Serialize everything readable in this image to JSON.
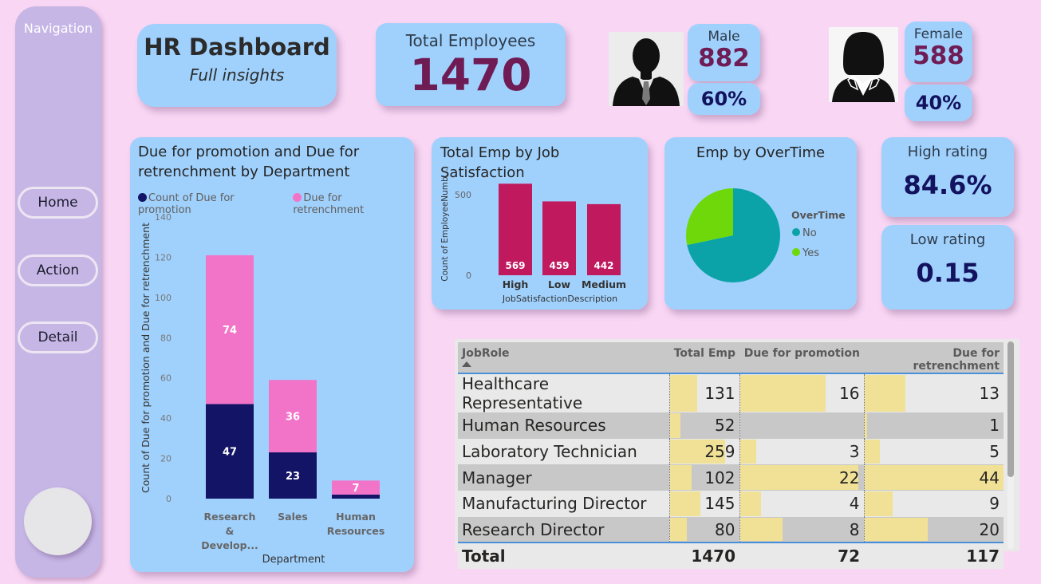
{
  "navigation": {
    "title": "Navigation",
    "buttons": [
      {
        "label": "Home"
      },
      {
        "label": "Action"
      },
      {
        "label": "Detail"
      }
    ]
  },
  "header": {
    "title": "HR Dashboard",
    "subtitle": "Full insights"
  },
  "kpis": {
    "total_employees": {
      "label": "Total Employees",
      "value": "1470"
    },
    "male": {
      "label": "Male",
      "value": "882",
      "percent": "60%",
      "icon": "male-avatar-icon"
    },
    "female": {
      "label": "Female",
      "value": "588",
      "percent": "40%",
      "icon": "female-avatar-icon"
    },
    "high_rating": {
      "label": "High rating",
      "value": "84.6%"
    },
    "low_rating": {
      "label": "Low rating",
      "value": "0.15"
    }
  },
  "colors": {
    "background": "#f9d6f4",
    "card": "#a0d1fd",
    "nav": "#c6b6e6",
    "promotion": "#141466",
    "retrenchment": "#f274c8",
    "job_sat_bar": "#c0195e",
    "overtime_no": "#0ca3a8",
    "overtime_yes": "#6ed80a",
    "data_bar": "#f0e196"
  },
  "chart_data": [
    {
      "type": "bar",
      "stacked": true,
      "title": "Due for promotion and Due for retrenchment by Department",
      "xlabel": "Department",
      "ylabel": "Count of Due for promotion and Due for retrenchment",
      "categories": [
        "Research & Develop...",
        "Sales",
        "Human Resources"
      ],
      "series": [
        {
          "name": "Count of Due for promotion",
          "values": [
            47,
            23,
            2
          ],
          "labels": [
            "47",
            "23",
            ""
          ]
        },
        {
          "name": "Due for retrenchment",
          "values": [
            74,
            36,
            7
          ],
          "labels": [
            "74",
            "36",
            "7"
          ]
        }
      ],
      "ylim": [
        0,
        140
      ],
      "yticks": [
        0,
        20,
        40,
        60,
        80,
        100,
        120,
        140
      ],
      "legend": "top-left"
    },
    {
      "type": "bar",
      "title": "Total Emp by Job Satisfaction",
      "xlabel": "JobSatisfactionDescription",
      "ylabel": "Count of EmployeeNumb...",
      "categories": [
        "High",
        "Low",
        "Medium"
      ],
      "values": [
        569,
        459,
        442
      ],
      "ylim": [
        0,
        600
      ],
      "yticks": [
        0,
        500
      ]
    },
    {
      "type": "pie",
      "title": "Emp by OverTime",
      "legend_title": "OverTime",
      "categories": [
        "No",
        "Yes"
      ],
      "values": [
        1054,
        416
      ],
      "legend": "right"
    }
  ],
  "table": {
    "columns": [
      "JobRole",
      "Total Emp",
      "Due for promotion",
      "Due for retrenchment"
    ],
    "rows": [
      {
        "role": "Healthcare Representative",
        "total": 131,
        "promotion": 16,
        "retrenchment": 13
      },
      {
        "role": "Human Resources",
        "total": 52,
        "promotion": null,
        "retrenchment": 1
      },
      {
        "role": "Laboratory Technician",
        "total": 259,
        "promotion": 3,
        "retrenchment": 5
      },
      {
        "role": "Manager",
        "total": 102,
        "promotion": 22,
        "retrenchment": 44
      },
      {
        "role": "Manufacturing Director",
        "total": 145,
        "promotion": 4,
        "retrenchment": 9
      },
      {
        "role": "Research Director",
        "total": 80,
        "promotion": 8,
        "retrenchment": 20
      }
    ],
    "totals": {
      "label": "Total",
      "total": "1470",
      "promotion": "72",
      "retrenchment": "117"
    },
    "bar_max": {
      "total": 326,
      "promotion": 23,
      "retrenchment": 44
    }
  }
}
